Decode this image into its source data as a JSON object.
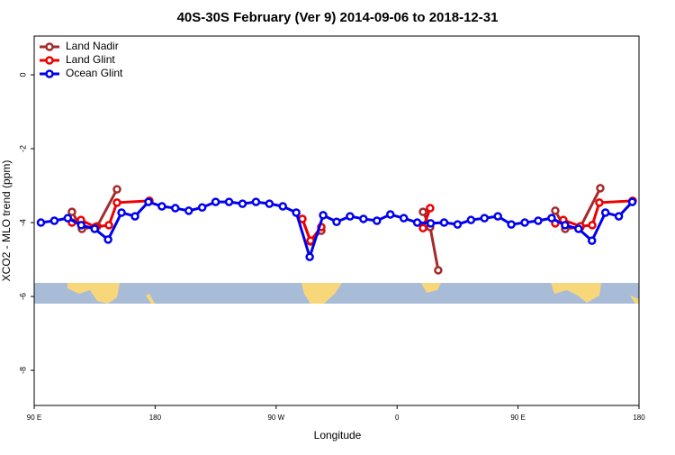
{
  "chart_data": {
    "type": "line",
    "title": "40S-30S February (Ver 9)   2014-09-06 to 2018-12-31",
    "x_label": "Longitude",
    "y_label": "XCO2 - MLO trend (ppm)",
    "xlim": [
      90,
      540
    ],
    "xticks": [
      {
        "value": 90,
        "label": "90 E"
      },
      {
        "value": 180,
        "label": "180"
      },
      {
        "value": 270,
        "label": "90 W"
      },
      {
        "value": 360,
        "label": "0"
      },
      {
        "value": 450,
        "label": "90 E"
      },
      {
        "value": 540,
        "label": "180"
      }
    ],
    "ylim": [
      -8.95,
      1.05
    ],
    "yticks": [
      0,
      -2,
      -4,
      -6,
      -8
    ],
    "legend": "top-left",
    "series": [
      {
        "name": "Land Nadir",
        "color": "#a52a2a",
        "x": [
          118.1,
          125.5,
          136.9,
          151.6,
          null,
          289.5,
          295.6,
          303.6,
          null,
          379.3,
          384.6,
          390.6,
          null,
          477.7,
          485.1,
          496.4,
          511.2
        ],
        "values": [
          -3.71,
          -4.17,
          -4.1,
          -3.1,
          null,
          -3.9,
          -4.51,
          -4.22,
          null,
          -3.71,
          -4.12,
          -5.29,
          null,
          -3.68,
          -4.17,
          -4.12,
          -3.07
        ]
      },
      {
        "name": "Land Glint",
        "color": "#ee0000",
        "x": [
          118.1,
          124.8,
          135.5,
          145.6,
          151.6,
          175.7,
          null,
          289.5,
          295.6,
          303.6,
          null,
          379.3,
          384.6,
          null,
          477.7,
          483.7,
          496.4,
          505.2,
          510.5,
          535.3
        ],
        "values": [
          -4.0,
          -3.93,
          -4.12,
          -4.07,
          -3.46,
          -3.41,
          null,
          -3.9,
          -4.49,
          -4.12,
          null,
          -4.15,
          -3.61,
          null,
          -4.02,
          -3.93,
          -4.1,
          -4.07,
          -3.46,
          -3.41
        ]
      },
      {
        "name": "Ocean Glint",
        "color": "#0000ee",
        "x": [
          95,
          105,
          115,
          125,
          135,
          145,
          155,
          165,
          175,
          185,
          195,
          205,
          215,
          225,
          235,
          245,
          255,
          265,
          275,
          285,
          295,
          305,
          315,
          325,
          335,
          345,
          355,
          365,
          375,
          385,
          395,
          405,
          415,
          425,
          435,
          445,
          455,
          465,
          475,
          485,
          495,
          505,
          515,
          525,
          535
        ],
        "values": [
          -4.0,
          -3.95,
          -3.88,
          -4.07,
          -4.17,
          -4.46,
          -3.73,
          -3.83,
          -3.44,
          -3.56,
          -3.61,
          -3.68,
          -3.59,
          -3.44,
          -3.44,
          -3.49,
          -3.44,
          -3.49,
          -3.56,
          -3.73,
          -4.93,
          -3.8,
          -3.98,
          -3.83,
          -3.9,
          -3.95,
          -3.78,
          -3.88,
          -4.0,
          -4.02,
          -4.0,
          -4.05,
          -3.93,
          -3.88,
          -3.83,
          -4.05,
          -4.0,
          -3.95,
          -3.88,
          -4.07,
          -4.17,
          -4.49,
          -3.73,
          -3.83,
          -3.44
        ]
      }
    ]
  }
}
